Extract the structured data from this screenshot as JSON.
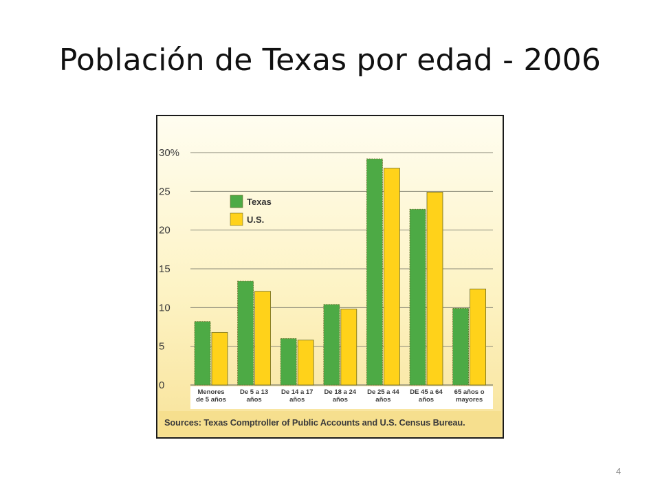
{
  "slide": {
    "title": "Población de Texas por edad -  2006",
    "page_number": "4"
  },
  "colors": {
    "texas": "#4daa45",
    "us": "#ffd21a",
    "bar_stroke": "#6a6a2a",
    "grid": "#8a8a78",
    "axis_text": "#3a3a3a"
  },
  "chart_data": {
    "type": "bar",
    "title": "",
    "xlabel": "",
    "ylabel": "",
    "ylim": [
      0,
      30
    ],
    "y_ticks": [
      {
        "value": 0,
        "label": "0"
      },
      {
        "value": 5,
        "label": "5"
      },
      {
        "value": 10,
        "label": "10"
      },
      {
        "value": 15,
        "label": "15"
      },
      {
        "value": 20,
        "label": "20"
      },
      {
        "value": 25,
        "label": "25"
      },
      {
        "value": 30,
        "label": "30%"
      }
    ],
    "categories": [
      [
        "Menores",
        "de 5 años"
      ],
      [
        "De 5 a 13",
        "años"
      ],
      [
        "De 14 a 17",
        "años"
      ],
      [
        "De 18 a 24",
        "años"
      ],
      [
        "De 25 a 44",
        "años"
      ],
      [
        "DE 45 a 64",
        "años"
      ],
      [
        "65 años o",
        "mayores"
      ]
    ],
    "series": [
      {
        "name": "Texas",
        "color": "#4daa45",
        "values": [
          8.2,
          13.4,
          6.0,
          10.4,
          29.2,
          22.7,
          9.9
        ]
      },
      {
        "name": "U.S.",
        "color": "#ffd21a",
        "values": [
          6.8,
          12.1,
          5.8,
          9.8,
          28.0,
          24.9,
          12.4
        ]
      }
    ],
    "grid": true,
    "legend_position": "top-left",
    "source": "Sources: Texas Comptroller of Public Accounts and U.S. Census Bureau."
  }
}
